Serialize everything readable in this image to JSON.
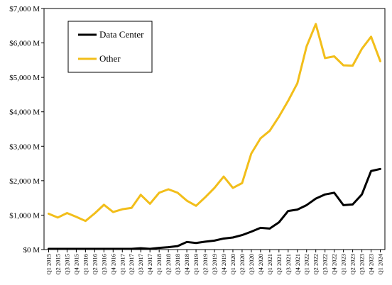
{
  "chart_data": {
    "type": "line",
    "title": "",
    "xlabel": "",
    "ylabel": "",
    "ylim": [
      0,
      7000
    ],
    "y_ticks": [
      0,
      1000,
      2000,
      3000,
      4000,
      5000,
      6000,
      7000
    ],
    "y_tick_labels": [
      "$0 M",
      "$1,000 M",
      "$2,000 M",
      "$3,000 M",
      "$4,000 M",
      "$5,000 M",
      "$6,000 M",
      "$7,000 M"
    ],
    "grid": false,
    "legend_position": "top-left",
    "categories": [
      "Q1 2015",
      "Q2 2015",
      "Q3 2015",
      "Q4 2015",
      "Q1 2016",
      "Q2 2016",
      "Q3 2016",
      "Q4 2016",
      "Q1 2017",
      "Q2 2017",
      "Q3 2017",
      "Q4 2017",
      "Q1 2018",
      "Q2 2018",
      "Q3 2018",
      "Q4 2018",
      "Q1 2019",
      "Q2 2019",
      "Q3 2019",
      "Q4 2019",
      "Q1 2020",
      "Q2 2020",
      "Q3 2020",
      "Q4 2020",
      "Q1 2021",
      "Q2 2021",
      "Q3 2021",
      "Q4 2021",
      "Q1 2022",
      "Q2 2022",
      "Q3 2022",
      "Q4 2022",
      "Q1 2023",
      "Q2 2023",
      "Q3 2023",
      "Q4 2023",
      "Q1 2024"
    ],
    "series": [
      {
        "name": "Data Center",
        "color": "#000000",
        "values": [
          20,
          20,
          20,
          20,
          20,
          20,
          20,
          20,
          20,
          20,
          40,
          20,
          50,
          70,
          100,
          220,
          190,
          230,
          260,
          320,
          350,
          420,
          520,
          630,
          610,
          790,
          1120,
          1160,
          1290,
          1480,
          1600,
          1650,
          1290,
          1310,
          1600,
          2280,
          2340
        ]
      },
      {
        "name": "Other",
        "color": "#F2BE1A",
        "values": [
          1040,
          930,
          1060,
          950,
          830,
          1050,
          1300,
          1090,
          1170,
          1210,
          1590,
          1330,
          1650,
          1750,
          1650,
          1420,
          1270,
          1520,
          1790,
          2120,
          1790,
          1930,
          2790,
          3230,
          3450,
          3860,
          4320,
          4830,
          5900,
          6550,
          5560,
          5610,
          5350,
          5340,
          5830,
          6180,
          5470
        ]
      }
    ]
  }
}
